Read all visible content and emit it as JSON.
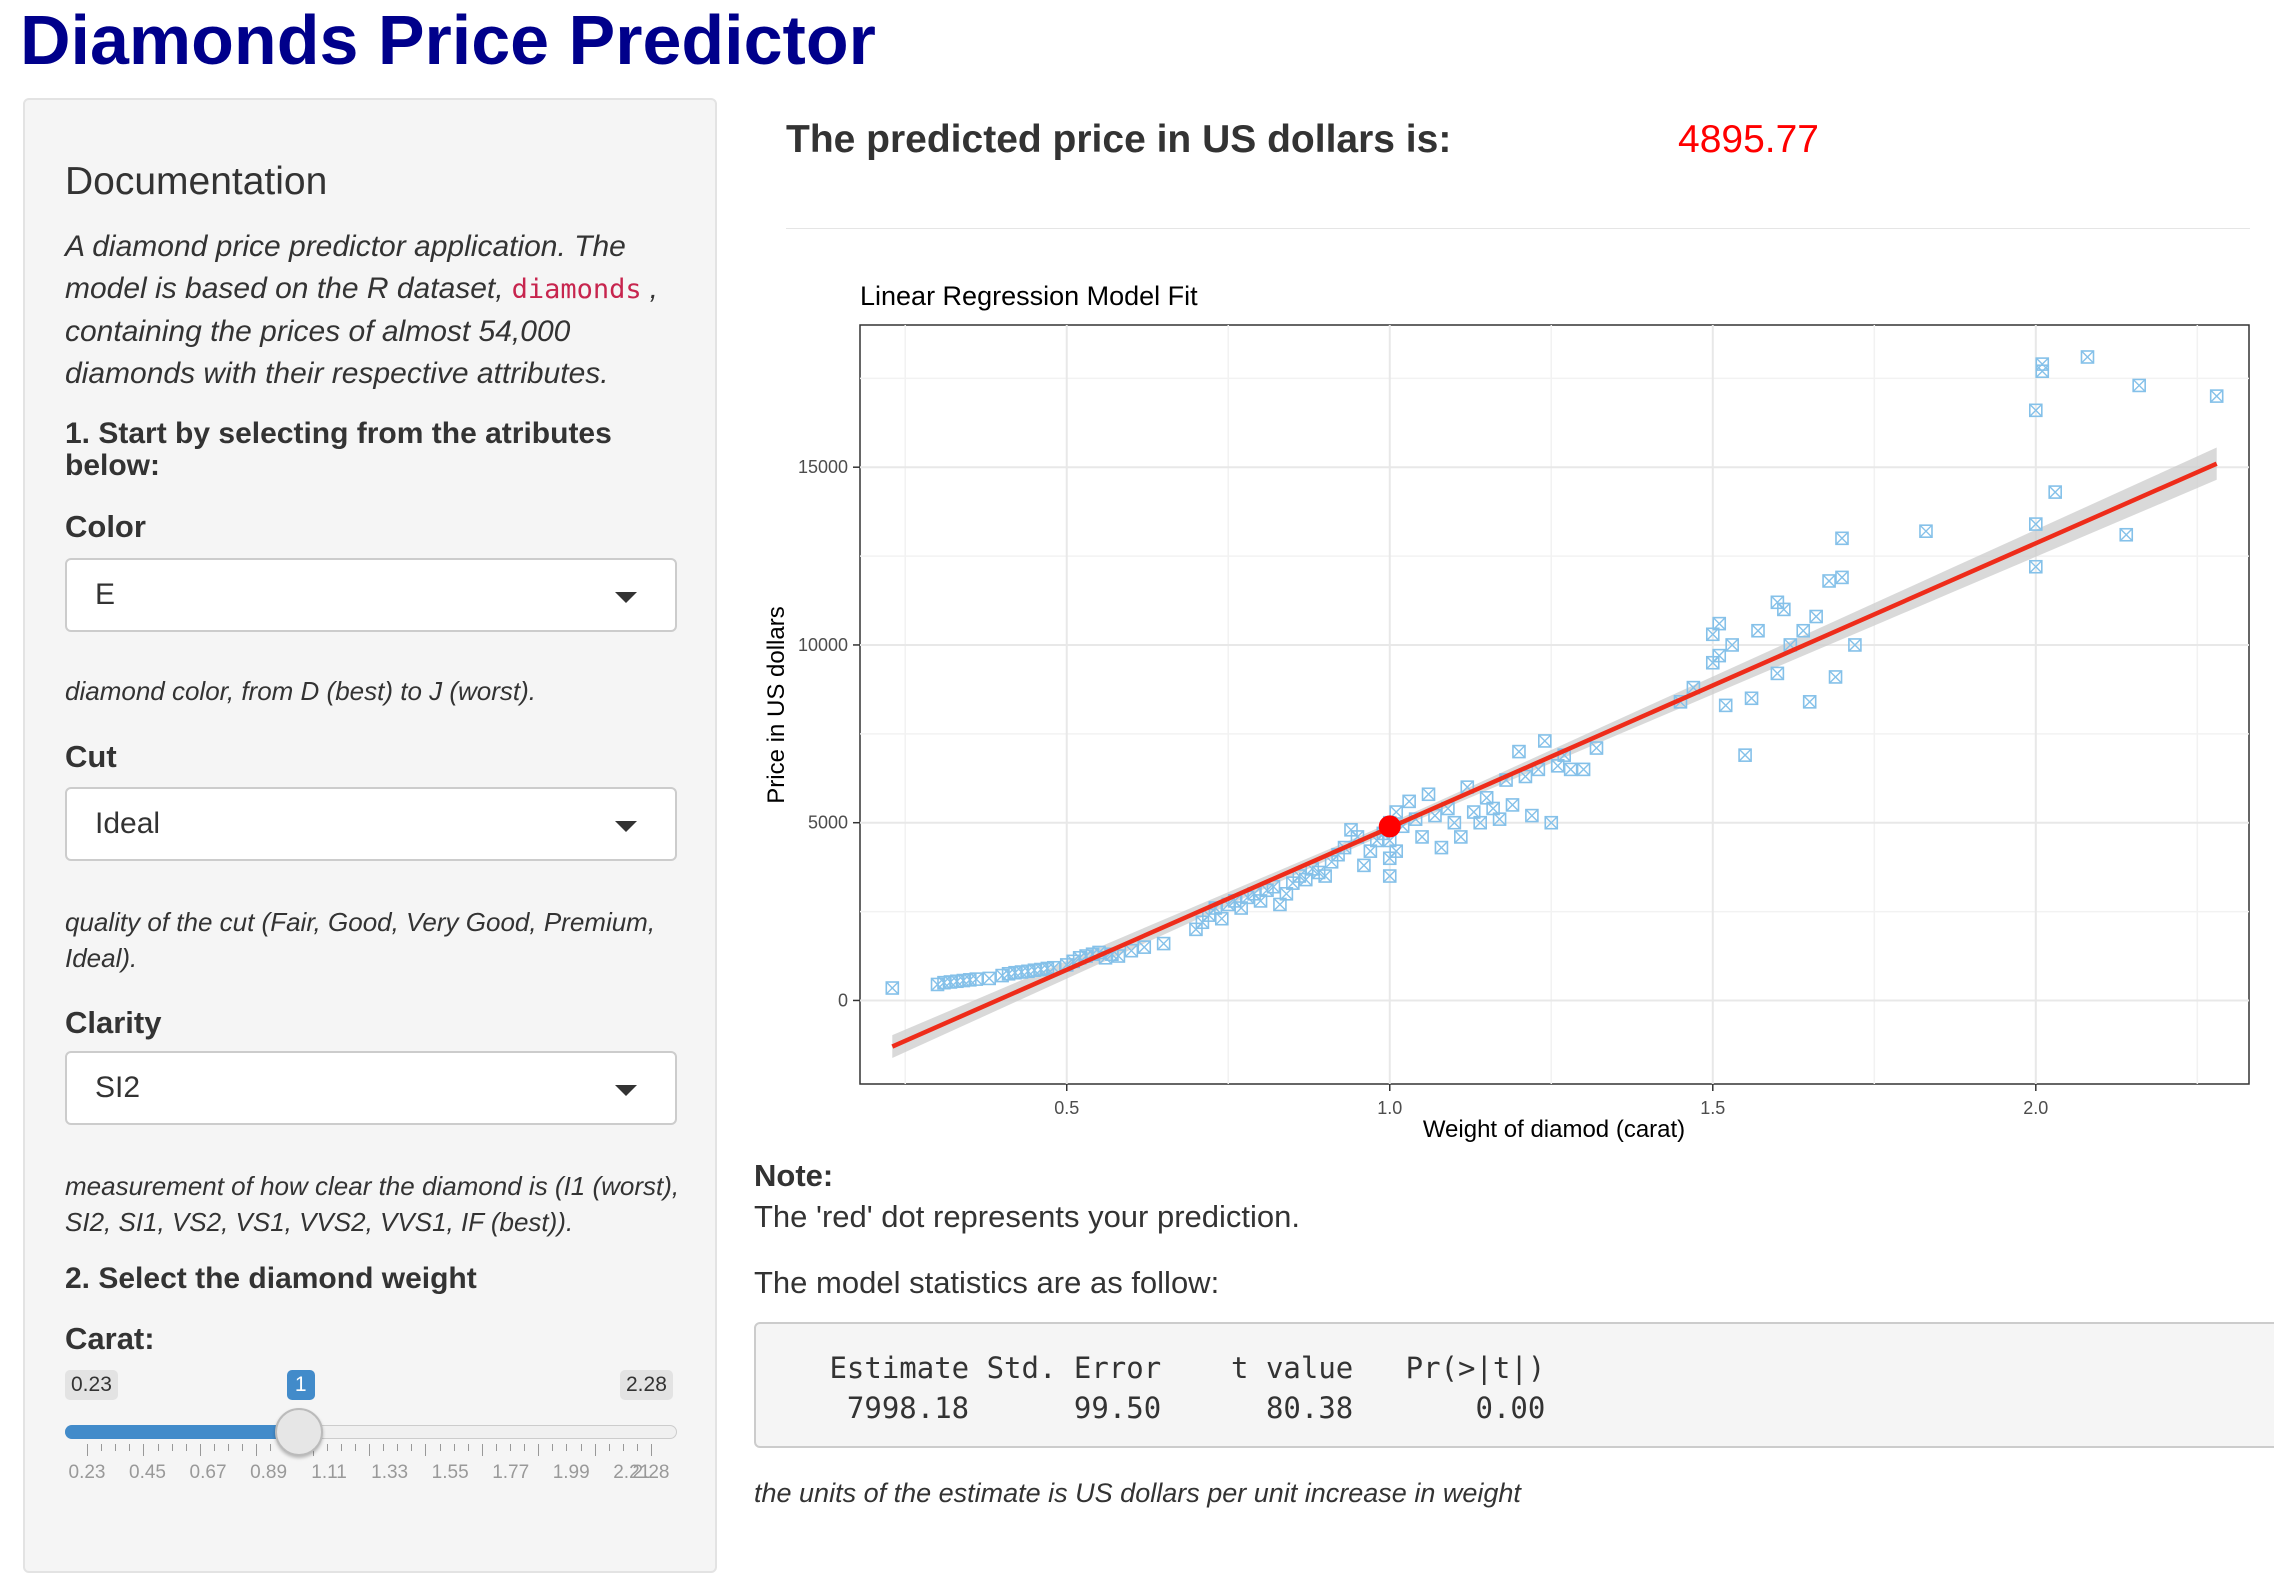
{
  "app": {
    "title": "Diamonds Price Predictor"
  },
  "sidebar": {
    "doc_title": "Documentation",
    "doc_desc_before": "A diamond price predictor application. The model is based on the R dataset,",
    "doc_desc_code": "diamonds",
    "doc_desc_after": ", containing the prices of almost 54,000 diamonds with their respective attributes.",
    "step1": "1. Start by selecting from the atributes below:",
    "color": {
      "label": "Color",
      "value": "E",
      "help": "diamond color, from D (best) to J (worst)."
    },
    "cut": {
      "label": "Cut",
      "value": "Ideal",
      "help": "quality of the cut (Fair, Good, Very Good, Premium, Ideal)."
    },
    "clarity": {
      "label": "Clarity",
      "value": "SI2",
      "help": "measurement of how clear the diamond is (I1 (worst), SI2, SI1, VS2, VS1, VVS2, VVS1, IF (best))."
    },
    "step2": "2. Select the diamond weight",
    "carat": {
      "label": "Carat:",
      "min_label": "0.23",
      "max_label": "2.28",
      "value_label": "1",
      "min": 0.23,
      "max": 2.28,
      "value": 1,
      "tick_labels": [
        "0.23",
        "0.45",
        "0.67",
        "0.89",
        "1.11",
        "1.33",
        "1.55",
        "1.77",
        "1.99",
        "2.21",
        "2.28"
      ]
    }
  },
  "main": {
    "prediction_label": "The predicted price in US dollars is:",
    "prediction_value": "4895.77",
    "note_title": "Note:",
    "note_text": "The 'red' dot represents your prediction.",
    "stats_title": "The model statistics are as follow:",
    "stats_table": " Estimate Std. Error    t value   Pr(>|t|)\n  7998.18      99.50      80.38       0.00",
    "units_note": "the units of the estimate is US dollars per unit increase in weight"
  },
  "chart_data": {
    "type": "scatter",
    "title": "Linear Regression Model Fit",
    "xlabel": "Weight of diamod (carat)",
    "ylabel": "Price in US dollars",
    "xlim": [
      0.18,
      2.33
    ],
    "ylim": [
      -2350,
      19000
    ],
    "x_ticks": [
      0.5,
      1.0,
      1.5,
      2.0
    ],
    "x_tick_labels": [
      "0.5",
      "1.0",
      "1.5",
      "2.0"
    ],
    "y_ticks": [
      0,
      5000,
      10000,
      15000
    ],
    "y_tick_labels": [
      "0",
      "5000",
      "10000",
      "15000"
    ],
    "grid": true,
    "colors": {
      "points": "#85c1e9",
      "fit_line": "#ee2c1a",
      "prediction": "#ff0000",
      "ribbon": "#cccccc"
    },
    "fit_line": {
      "x": [
        0.23,
        2.28
      ],
      "y": [
        -1297,
        15100
      ]
    },
    "prediction": {
      "x": 1.0,
      "y": 4895.77
    },
    "points": [
      [
        0.23,
        350
      ],
      [
        0.3,
        450
      ],
      [
        0.31,
        500
      ],
      [
        0.32,
        520
      ],
      [
        0.33,
        540
      ],
      [
        0.34,
        560
      ],
      [
        0.35,
        580
      ],
      [
        0.36,
        600
      ],
      [
        0.38,
        620
      ],
      [
        0.4,
        700
      ],
      [
        0.41,
        750
      ],
      [
        0.42,
        780
      ],
      [
        0.43,
        800
      ],
      [
        0.44,
        820
      ],
      [
        0.45,
        850
      ],
      [
        0.46,
        870
      ],
      [
        0.47,
        900
      ],
      [
        0.48,
        920
      ],
      [
        0.5,
        1000
      ],
      [
        0.51,
        1100
      ],
      [
        0.52,
        1200
      ],
      [
        0.53,
        1250
      ],
      [
        0.54,
        1300
      ],
      [
        0.55,
        1350
      ],
      [
        0.56,
        1200
      ],
      [
        0.57,
        1300
      ],
      [
        0.58,
        1250
      ],
      [
        0.6,
        1400
      ],
      [
        0.62,
        1500
      ],
      [
        0.65,
        1600
      ],
      [
        0.7,
        2000
      ],
      [
        0.71,
        2200
      ],
      [
        0.72,
        2400
      ],
      [
        0.73,
        2600
      ],
      [
        0.74,
        2300
      ],
      [
        0.75,
        2700
      ],
      [
        0.76,
        2800
      ],
      [
        0.77,
        2600
      ],
      [
        0.78,
        2900
      ],
      [
        0.79,
        3000
      ],
      [
        0.8,
        2800
      ],
      [
        0.81,
        3100
      ],
      [
        0.82,
        3200
      ],
      [
        0.83,
        2700
      ],
      [
        0.84,
        3000
      ],
      [
        0.85,
        3300
      ],
      [
        0.86,
        3500
      ],
      [
        0.87,
        3400
      ],
      [
        0.88,
        3700
      ],
      [
        0.89,
        3600
      ],
      [
        0.9,
        3500
      ],
      [
        0.91,
        3900
      ],
      [
        0.92,
        4100
      ],
      [
        0.93,
        4300
      ],
      [
        0.94,
        4800
      ],
      [
        0.95,
        4600
      ],
      [
        0.96,
        3800
      ],
      [
        0.97,
        4200
      ],
      [
        0.98,
        4500
      ],
      [
        0.99,
        4700
      ],
      [
        1.0,
        3500
      ],
      [
        1.0,
        4000
      ],
      [
        1.0,
        4500
      ],
      [
        1.0,
        5000
      ],
      [
        1.01,
        5300
      ],
      [
        1.01,
        4200
      ],
      [
        1.02,
        4900
      ],
      [
        1.03,
        5600
      ],
      [
        1.04,
        5100
      ],
      [
        1.05,
        4600
      ],
      [
        1.06,
        5800
      ],
      [
        1.07,
        5200
      ],
      [
        1.08,
        4300
      ],
      [
        1.09,
        5400
      ],
      [
        1.1,
        5000
      ],
      [
        1.11,
        4600
      ],
      [
        1.12,
        6000
      ],
      [
        1.13,
        5300
      ],
      [
        1.14,
        5000
      ],
      [
        1.15,
        5700
      ],
      [
        1.16,
        5400
      ],
      [
        1.17,
        5100
      ],
      [
        1.18,
        6200
      ],
      [
        1.19,
        5500
      ],
      [
        1.2,
        7000
      ],
      [
        1.21,
        6300
      ],
      [
        1.22,
        5200
      ],
      [
        1.23,
        6500
      ],
      [
        1.24,
        7300
      ],
      [
        1.25,
        5000
      ],
      [
        1.26,
        6600
      ],
      [
        1.27,
        6900
      ],
      [
        1.28,
        6500
      ],
      [
        1.3,
        6500
      ],
      [
        1.32,
        7100
      ],
      [
        1.45,
        8400
      ],
      [
        1.47,
        8800
      ],
      [
        1.5,
        9500
      ],
      [
        1.5,
        10300
      ],
      [
        1.51,
        10600
      ],
      [
        1.51,
        9700
      ],
      [
        1.52,
        8300
      ],
      [
        1.53,
        10000
      ],
      [
        1.55,
        6900
      ],
      [
        1.56,
        8500
      ],
      [
        1.57,
        10400
      ],
      [
        1.6,
        9200
      ],
      [
        1.6,
        11200
      ],
      [
        1.61,
        11000
      ],
      [
        1.62,
        10000
      ],
      [
        1.64,
        10400
      ],
      [
        1.65,
        8400
      ],
      [
        1.66,
        10800
      ],
      [
        1.68,
        11800
      ],
      [
        1.69,
        9100
      ],
      [
        1.7,
        11900
      ],
      [
        1.7,
        13000
      ],
      [
        1.72,
        10000
      ],
      [
        1.83,
        13200
      ],
      [
        2.0,
        12200
      ],
      [
        2.0,
        13400
      ],
      [
        2.0,
        16600
      ],
      [
        2.01,
        17700
      ],
      [
        2.01,
        17900
      ],
      [
        2.03,
        14300
      ],
      [
        2.08,
        18100
      ],
      [
        2.14,
        13100
      ],
      [
        2.16,
        17300
      ],
      [
        2.28,
        17000
      ]
    ]
  }
}
